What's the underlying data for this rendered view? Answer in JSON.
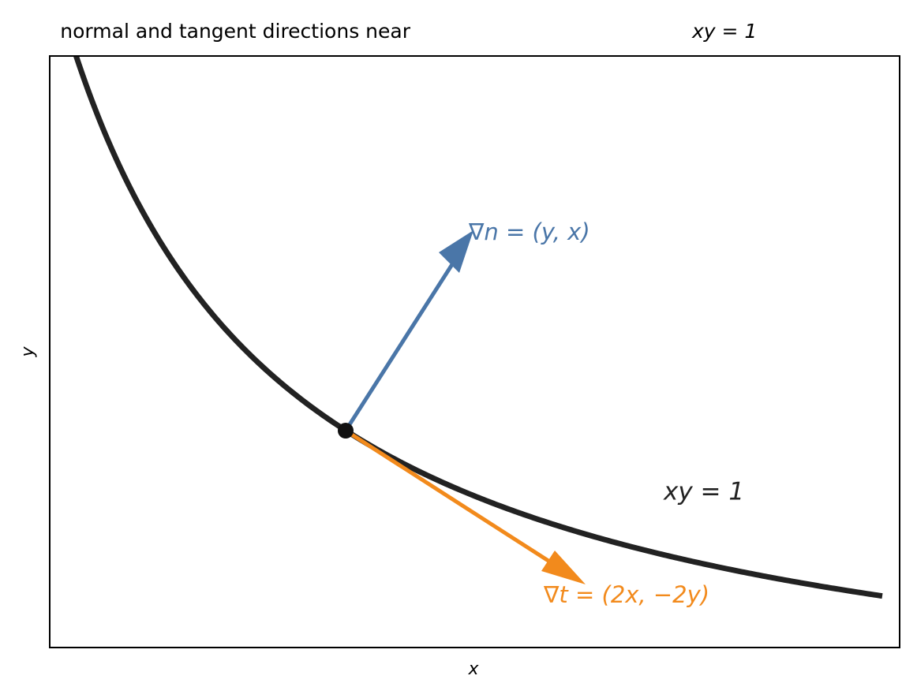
{
  "title": {
    "text": "normal and tangent directions near",
    "math": "xy = 1"
  },
  "axes": {
    "x_label": "x",
    "y_label": "y"
  },
  "annotations": {
    "normal": "∇n = (y, x)",
    "tangent": "∇t = (2x, −2y)",
    "curve": "xy = 1"
  }
}
